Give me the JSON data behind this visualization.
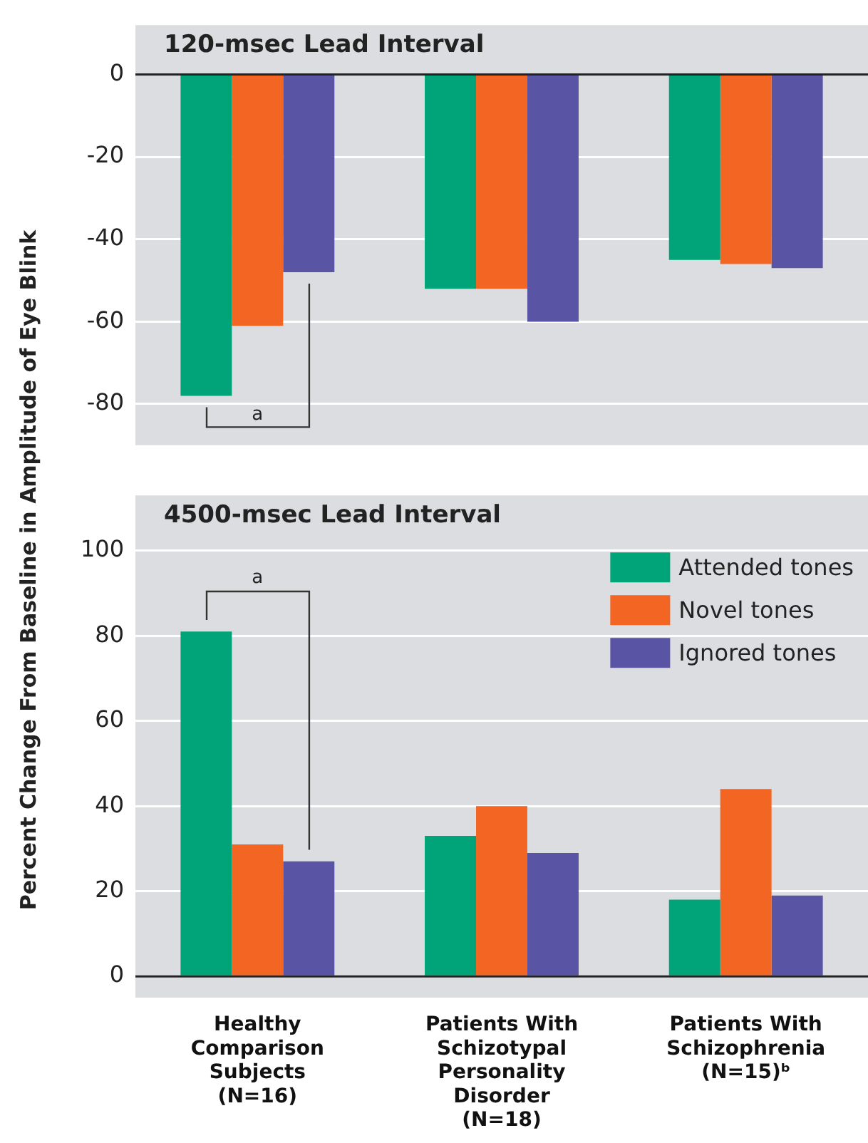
{
  "chart_data": [
    {
      "type": "bar",
      "title": "120-msec Lead Interval",
      "ylabel": "Percent Change From Baseline in Amplitude of Eye Blink",
      "categories": [
        null,
        null,
        null
      ],
      "series": [
        {
          "color": "#00a478",
          "values": [
            -78,
            -52,
            -45
          ]
        },
        {
          "color": "#f26522",
          "values": [
            -61,
            -52,
            -46
          ]
        },
        {
          "color": "#5a54a4",
          "values": [
            -48,
            -60,
            -47
          ]
        }
      ],
      "ylim": [
        -90,
        12
      ],
      "yticks": [
        -80,
        -60,
        -40,
        -20,
        0
      ],
      "grid": "y",
      "tick_labels": "y",
      "annotations": [
        "a"
      ]
    },
    {
      "type": "bar",
      "title": "4500-msec Lead Interval",
      "categories": [
        "Healthy Comparison Subjects (N=16)",
        "Patients With Schizotypal Personality Disorder (N=18)",
        "Patients With Schizophrenia (N=15)ᵇ"
      ],
      "series": [
        {
          "name": "Attended tones",
          "color": "#00a478",
          "values": [
            81,
            33,
            18
          ]
        },
        {
          "name": "Novel tones",
          "color": "#f26522",
          "values": [
            31,
            40,
            44
          ]
        },
        {
          "name": "Ignored tones",
          "color": "#5a54a4",
          "values": [
            27,
            29,
            19
          ]
        }
      ],
      "ylim": [
        -5,
        113
      ],
      "yticks": [
        0,
        20,
        40,
        60,
        80,
        100
      ],
      "grid": "y",
      "legend": "top right",
      "annotations": [
        "a"
      ]
    }
  ]
}
